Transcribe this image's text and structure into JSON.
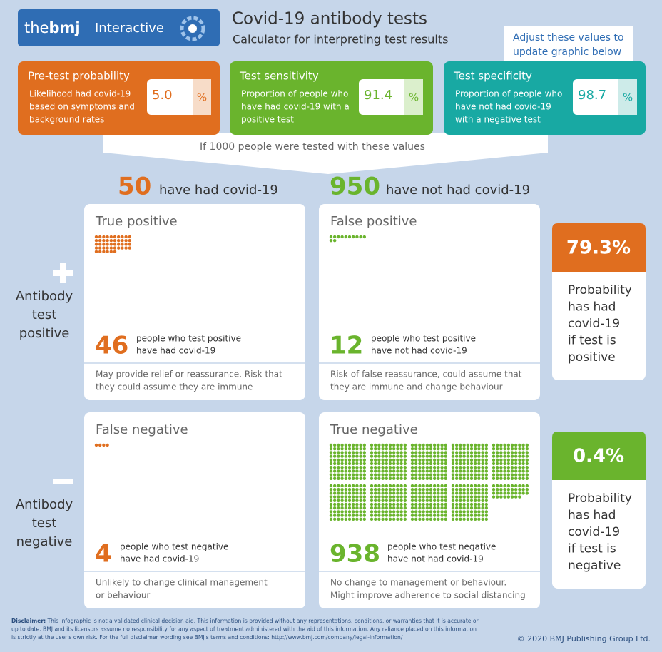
{
  "header": {
    "logo": {
      "prefix": "the",
      "brand": "bmj",
      "label": "Interactive"
    },
    "title": "Covid-19 antibody tests",
    "subtitle": "Calculator for interpreting test results"
  },
  "tooltip": [
    "Adjust these values to",
    "update graphic below"
  ],
  "inputs": [
    {
      "title": "Pre-test probability",
      "description": [
        "Likelihood had covid-19",
        "based on symptoms and",
        "background rates"
      ],
      "value": "5.0",
      "unit": "%"
    },
    {
      "title": "Test sensitivity",
      "description": [
        "Proportion of people who",
        "have had covid-19 with a",
        "positive test"
      ],
      "value": "91.4",
      "unit": "%"
    },
    {
      "title": "Test specificity",
      "description": [
        "Proportion of people who",
        "have not had covid-19",
        "with a negative test"
      ],
      "value": "98.7",
      "unit": "%"
    }
  ],
  "summary": "If 1000 people were tested with these values",
  "groups": [
    {
      "count": 50,
      "label": "have had covid-19"
    },
    {
      "count": 950,
      "label": "have not had covid-19"
    }
  ],
  "rows": [
    {
      "label": [
        "Antibody",
        "test",
        "positive"
      ],
      "cells": [
        {
          "title": "True positive",
          "count": 46,
          "description": [
            "people who test positive",
            "have had covid-19"
          ],
          "note": [
            "May provide relief or reassurance. Risk that",
            "they could assume they are immune"
          ]
        },
        {
          "title": "False positive",
          "count": 12,
          "description": [
            "people who test positive",
            "have not had covid-19"
          ],
          "note": [
            "Risk of false reassurance, could assume that",
            "they are immune and change behaviour"
          ]
        }
      ],
      "result": {
        "value": "79.3%",
        "description": [
          "Probability",
          "has had",
          "covid-19",
          "if test is",
          "positive"
        ]
      }
    },
    {
      "label": [
        "Antibody",
        "test",
        "negative"
      ],
      "cells": [
        {
          "title": "False negative",
          "count": 4,
          "description": [
            "people who test negative",
            "have had covid-19"
          ],
          "note": [
            "Unlikely to change clinical management",
            "or behaviour"
          ]
        },
        {
          "title": "True negative",
          "count": 938,
          "description": [
            "people who test negative",
            "have not had covid-19"
          ],
          "note": [
            "No change to management or behaviour.",
            "Might improve adherence to social distancing"
          ]
        }
      ],
      "result": {
        "value": "0.4%",
        "description": [
          "Probability",
          "has had",
          "covid-19",
          "if test is",
          "negative"
        ]
      }
    }
  ],
  "disclaimer": {
    "label": "Disclaimer:",
    "lines": [
      "This infographic is not a validated clinical decision aid. This information is provided without any representations, conditions, or warranties that it is accurate or",
      "up to date. BMJ and its licensors assume no responsibility for any aspect of treatment administered with the aid of this information. Any reliance placed on this information",
      "is strictly at the user's own risk. For the full disclaimer wording see BMJ's terms and conditions: http://www.bmj.com/company/legal-information/"
    ]
  },
  "copyright": "© 2020 BMJ Publishing Group Ltd."
}
